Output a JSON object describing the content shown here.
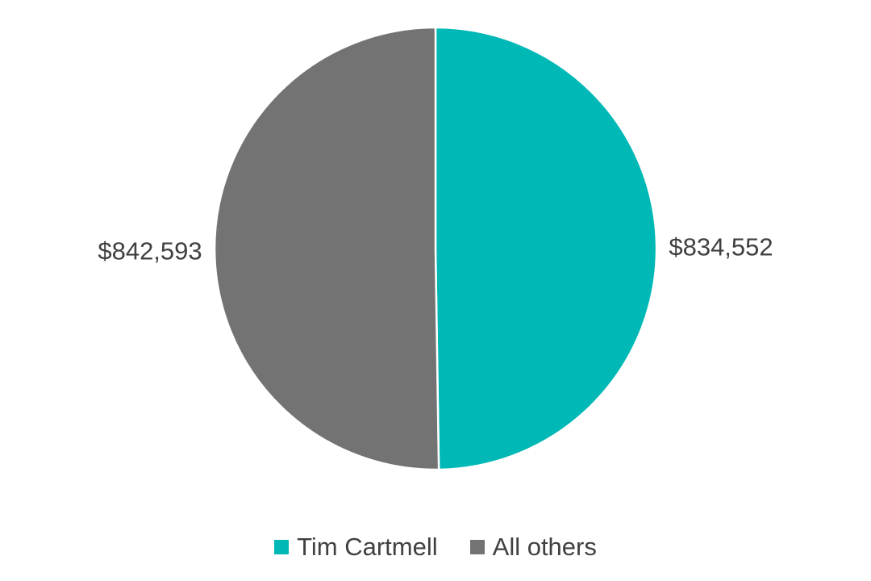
{
  "chart_data": {
    "type": "pie",
    "title": "",
    "series": [
      {
        "categories": [
          "Tim Cartmell",
          "All others"
        ],
        "values": [
          834552,
          842593
        ],
        "labels": [
          "$834,552",
          "$842,593"
        ],
        "colors": [
          "#00b8b5",
          "#737373"
        ]
      }
    ],
    "start_angle_deg": 0,
    "direction": "clockwise",
    "legend": {
      "position": "bottom",
      "entries": [
        "Tim Cartmell",
        "All others"
      ]
    }
  }
}
